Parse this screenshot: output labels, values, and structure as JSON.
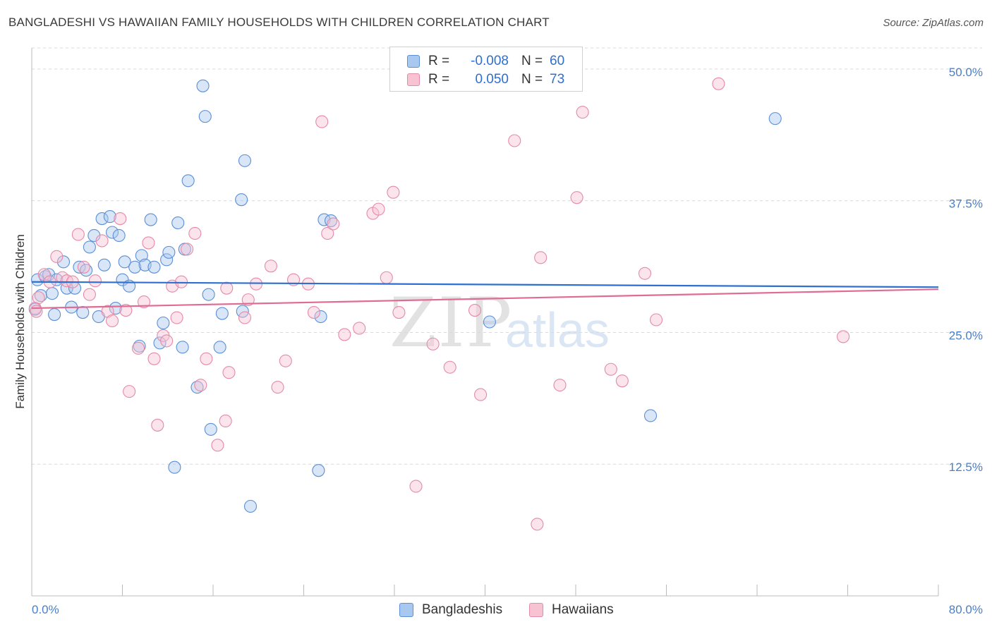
{
  "title": "BANGLADESHI VS HAWAIIAN FAMILY HOUSEHOLDS WITH CHILDREN CORRELATION CHART",
  "source": "Source: ZipAtlas.com",
  "watermark": {
    "zip": "ZIP",
    "atlas": "atlas"
  },
  "legend": {
    "rows": [
      {
        "r_label": "R =",
        "r_value": "-0.008",
        "n_label": "N =",
        "n_value": "60"
      },
      {
        "r_label": "R =",
        "r_value": "0.050",
        "n_label": "N =",
        "n_value": "73"
      }
    ]
  },
  "bottom_legend": {
    "series1": "Bangladeshis",
    "series2": "Hawaiians"
  },
  "colors": {
    "blue_fill": "#a9c8ef",
    "blue_stroke": "#5b8fd6",
    "blue_line": "#2e6fd0",
    "pink_fill": "#f7c3d3",
    "pink_stroke": "#e58aa8",
    "pink_line": "#e06b93",
    "grid": "#d9d9d9",
    "tick_text": "#4a7fc8"
  },
  "chart_data": {
    "type": "scatter",
    "title": "BANGLADESHI VS HAWAIIAN FAMILY HOUSEHOLDS WITH CHILDREN CORRELATION CHART",
    "xlabel": "",
    "ylabel": "Family Households with Children",
    "xlim": [
      0,
      80
    ],
    "ylim": [
      0,
      52
    ],
    "x_tick_labels": [
      "0.0%",
      "80.0%"
    ],
    "y_ticks": [
      12.5,
      25.0,
      37.5,
      50.0
    ],
    "y_tick_labels": [
      "12.5%",
      "25.0%",
      "37.5%",
      "50.0%"
    ],
    "grid": true,
    "series": [
      {
        "name": "Bangladeshis",
        "r": -0.008,
        "n": 60,
        "trend": {
          "x": [
            0,
            80
          ],
          "y": [
            29.8,
            29.3
          ]
        },
        "points": [
          [
            0.3,
            27.2
          ],
          [
            0.5,
            30.0
          ],
          [
            0.8,
            28.5
          ],
          [
            1.2,
            30.3
          ],
          [
            1.5,
            30.5
          ],
          [
            1.8,
            28.7
          ],
          [
            2.0,
            26.7
          ],
          [
            2.2,
            30.0
          ],
          [
            2.8,
            31.7
          ],
          [
            3.1,
            29.2
          ],
          [
            3.5,
            27.4
          ],
          [
            3.8,
            29.2
          ],
          [
            4.2,
            31.2
          ],
          [
            4.5,
            26.9
          ],
          [
            4.8,
            30.9
          ],
          [
            5.1,
            33.1
          ],
          [
            5.5,
            34.2
          ],
          [
            5.9,
            26.5
          ],
          [
            6.2,
            35.8
          ],
          [
            6.4,
            31.4
          ],
          [
            6.9,
            36.0
          ],
          [
            7.1,
            34.5
          ],
          [
            7.4,
            27.3
          ],
          [
            7.7,
            34.2
          ],
          [
            8.0,
            30.0
          ],
          [
            8.2,
            31.7
          ],
          [
            8.6,
            29.4
          ],
          [
            9.1,
            31.2
          ],
          [
            9.5,
            23.7
          ],
          [
            9.7,
            32.3
          ],
          [
            10.0,
            31.4
          ],
          [
            10.5,
            35.7
          ],
          [
            10.8,
            31.2
          ],
          [
            11.3,
            24.0
          ],
          [
            11.6,
            25.9
          ],
          [
            11.9,
            31.9
          ],
          [
            12.1,
            32.6
          ],
          [
            12.6,
            12.2
          ],
          [
            12.9,
            35.4
          ],
          [
            13.3,
            23.6
          ],
          [
            13.8,
            39.4
          ],
          [
            14.6,
            19.8
          ],
          [
            15.1,
            48.4
          ],
          [
            15.3,
            45.5
          ],
          [
            15.6,
            28.6
          ],
          [
            15.8,
            15.8
          ],
          [
            16.6,
            23.6
          ],
          [
            16.8,
            26.8
          ],
          [
            18.5,
            37.6
          ],
          [
            18.6,
            27.0
          ],
          [
            18.8,
            41.3
          ],
          [
            19.3,
            8.5
          ],
          [
            25.3,
            11.9
          ],
          [
            25.5,
            26.5
          ],
          [
            25.8,
            35.7
          ],
          [
            26.4,
            35.6
          ],
          [
            40.4,
            26.0
          ],
          [
            54.6,
            17.1
          ],
          [
            65.6,
            45.3
          ],
          [
            13.5,
            32.9
          ]
        ]
      },
      {
        "name": "Hawaiians",
        "r": 0.05,
        "n": 73,
        "trend": {
          "x": [
            0,
            80
          ],
          "y": [
            27.3,
            29.1
          ]
        },
        "points": [
          [
            0.3,
            27.3
          ],
          [
            0.6,
            28.3
          ],
          [
            1.1,
            30.5
          ],
          [
            1.6,
            29.8
          ],
          [
            2.2,
            32.2
          ],
          [
            2.7,
            30.2
          ],
          [
            3.1,
            29.9
          ],
          [
            3.6,
            29.8
          ],
          [
            4.1,
            34.3
          ],
          [
            4.6,
            31.2
          ],
          [
            5.1,
            28.6
          ],
          [
            5.6,
            29.9
          ],
          [
            6.2,
            33.7
          ],
          [
            6.7,
            27.0
          ],
          [
            7.1,
            26.1
          ],
          [
            7.8,
            35.8
          ],
          [
            8.3,
            27.1
          ],
          [
            8.6,
            19.4
          ],
          [
            9.4,
            23.5
          ],
          [
            9.9,
            27.9
          ],
          [
            10.3,
            33.5
          ],
          [
            10.8,
            22.5
          ],
          [
            11.1,
            16.2
          ],
          [
            11.6,
            24.7
          ],
          [
            11.9,
            24.2
          ],
          [
            12.4,
            29.4
          ],
          [
            12.8,
            26.4
          ],
          [
            13.2,
            29.8
          ],
          [
            13.7,
            32.9
          ],
          [
            14.4,
            34.4
          ],
          [
            14.9,
            20.0
          ],
          [
            15.4,
            22.5
          ],
          [
            16.4,
            14.3
          ],
          [
            17.1,
            16.6
          ],
          [
            17.4,
            21.2
          ],
          [
            18.8,
            26.4
          ],
          [
            19.1,
            28.1
          ],
          [
            19.8,
            29.6
          ],
          [
            21.1,
            31.3
          ],
          [
            21.7,
            19.8
          ],
          [
            22.4,
            22.3
          ],
          [
            23.1,
            30.0
          ],
          [
            24.4,
            29.6
          ],
          [
            24.9,
            26.9
          ],
          [
            25.6,
            45.0
          ],
          [
            26.1,
            34.4
          ],
          [
            26.6,
            35.3
          ],
          [
            27.6,
            24.8
          ],
          [
            28.9,
            25.4
          ],
          [
            30.1,
            36.3
          ],
          [
            30.6,
            36.7
          ],
          [
            31.3,
            30.2
          ],
          [
            31.9,
            38.3
          ],
          [
            32.4,
            26.9
          ],
          [
            33.9,
            10.4
          ],
          [
            35.4,
            23.9
          ],
          [
            36.9,
            21.7
          ],
          [
            39.1,
            27.1
          ],
          [
            39.6,
            19.1
          ],
          [
            42.6,
            43.2
          ],
          [
            44.6,
            6.8
          ],
          [
            44.9,
            32.1
          ],
          [
            46.6,
            20.0
          ],
          [
            48.1,
            37.8
          ],
          [
            48.6,
            45.9
          ],
          [
            51.1,
            21.5
          ],
          [
            52.1,
            20.4
          ],
          [
            54.1,
            30.6
          ],
          [
            55.1,
            26.2
          ],
          [
            60.6,
            48.6
          ],
          [
            71.6,
            24.6
          ],
          [
            0.4,
            27.0
          ],
          [
            17.2,
            29.2
          ]
        ]
      }
    ]
  }
}
